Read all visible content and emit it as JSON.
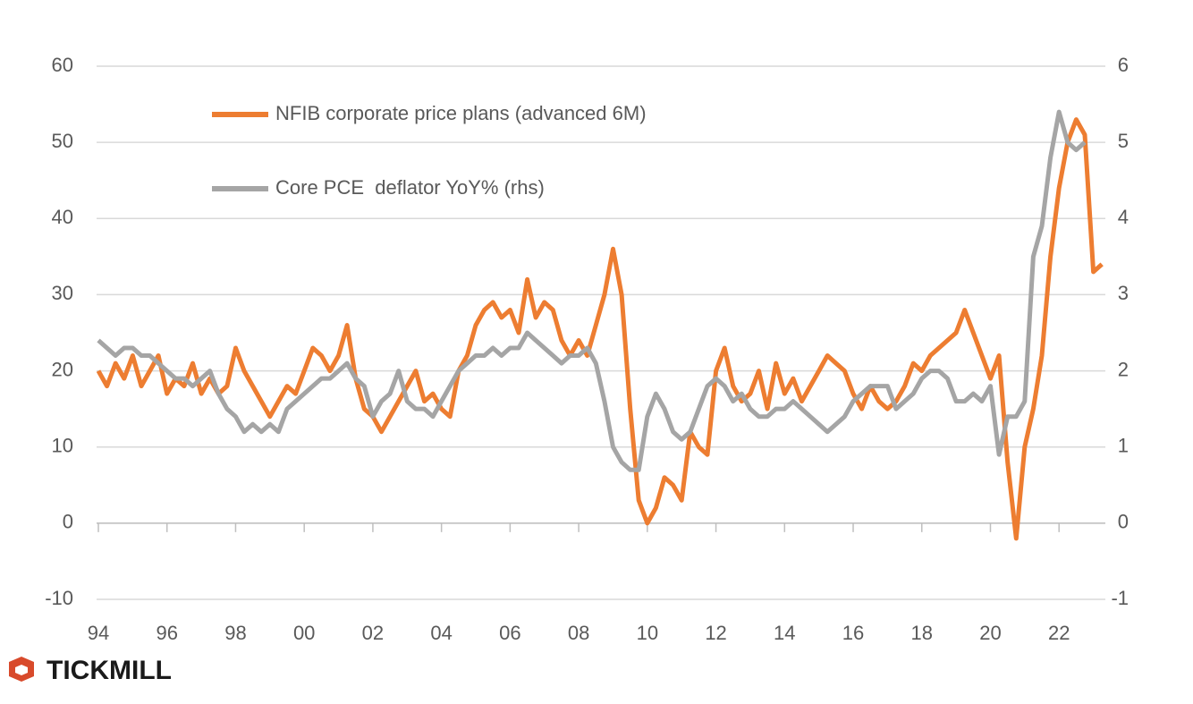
{
  "chart_data": {
    "type": "line",
    "x": [
      1994,
      1994.25,
      1994.5,
      1994.75,
      1995,
      1995.25,
      1995.5,
      1995.75,
      1996,
      1996.25,
      1996.5,
      1996.75,
      1997,
      1997.25,
      1997.5,
      1997.75,
      1998,
      1998.25,
      1998.5,
      1998.75,
      1999,
      1999.25,
      1999.5,
      1999.75,
      2000,
      2000.25,
      2000.5,
      2000.75,
      2001,
      2001.25,
      2001.5,
      2001.75,
      2002,
      2002.25,
      2002.5,
      2002.75,
      2003,
      2003.25,
      2003.5,
      2003.75,
      2004,
      2004.25,
      2004.5,
      2004.75,
      2005,
      2005.25,
      2005.5,
      2005.75,
      2006,
      2006.25,
      2006.5,
      2006.75,
      2007,
      2007.25,
      2007.5,
      2007.75,
      2008,
      2008.25,
      2008.5,
      2008.75,
      2009,
      2009.25,
      2009.5,
      2009.75,
      2010,
      2010.25,
      2010.5,
      2010.75,
      2011,
      2011.25,
      2011.5,
      2011.75,
      2012,
      2012.25,
      2012.5,
      2012.75,
      2013,
      2013.25,
      2013.5,
      2013.75,
      2014,
      2014.25,
      2014.5,
      2014.75,
      2015,
      2015.25,
      2015.5,
      2015.75,
      2016,
      2016.25,
      2016.5,
      2016.75,
      2017,
      2017.25,
      2017.5,
      2017.75,
      2018,
      2018.25,
      2018.5,
      2018.75,
      2019,
      2019.25,
      2019.5,
      2019.75,
      2020,
      2020.25,
      2020.5,
      2020.75,
      2021,
      2021.25,
      2021.5,
      2021.75,
      2022,
      2022.25,
      2022.5,
      2022.75,
      2023,
      2023.25
    ],
    "series": [
      {
        "name": "NFIB corporate price plans (advanced 6M)",
        "color": "#ed7d31",
        "axis": "y",
        "values": [
          20,
          18,
          21,
          19,
          22,
          18,
          20,
          22,
          17,
          19,
          18,
          21,
          17,
          19,
          17,
          18,
          23,
          20,
          18,
          16,
          14,
          16,
          18,
          17,
          20,
          23,
          22,
          20,
          22,
          26,
          19,
          15,
          14,
          12,
          14,
          16,
          18,
          20,
          16,
          17,
          15,
          14,
          20,
          22,
          26,
          28,
          29,
          27,
          28,
          25,
          32,
          27,
          29,
          28,
          24,
          22,
          24,
          22,
          26,
          30,
          36,
          30,
          15,
          3,
          0,
          2,
          6,
          5,
          3,
          12,
          10,
          9,
          20,
          23,
          18,
          16,
          17,
          20,
          15,
          21,
          17,
          19,
          16,
          18,
          20,
          22,
          21,
          20,
          17,
          15,
          18,
          16,
          15,
          16,
          18,
          21,
          20,
          22,
          23,
          24,
          25,
          28,
          25,
          22,
          19,
          22,
          8,
          -2,
          10,
          15,
          22,
          35,
          44,
          50,
          53,
          51,
          33,
          34
        ]
      },
      {
        "name": "Core PCE  deflator YoY% (rhs)",
        "color": "#a5a5a5",
        "axis": "y2",
        "values": [
          2.4,
          2.3,
          2.2,
          2.3,
          2.3,
          2.2,
          2.2,
          2.1,
          2.0,
          1.9,
          1.9,
          1.8,
          1.9,
          2.0,
          1.7,
          1.5,
          1.4,
          1.2,
          1.3,
          1.2,
          1.3,
          1.2,
          1.5,
          1.6,
          1.7,
          1.8,
          1.9,
          1.9,
          2.0,
          2.1,
          1.9,
          1.8,
          1.4,
          1.6,
          1.7,
          2.0,
          1.6,
          1.5,
          1.5,
          1.4,
          1.6,
          1.8,
          2.0,
          2.1,
          2.2,
          2.2,
          2.3,
          2.2,
          2.3,
          2.3,
          2.5,
          2.4,
          2.3,
          2.2,
          2.1,
          2.2,
          2.2,
          2.3,
          2.1,
          1.6,
          1.0,
          0.8,
          0.7,
          0.7,
          1.4,
          1.7,
          1.5,
          1.2,
          1.1,
          1.2,
          1.5,
          1.8,
          1.9,
          1.8,
          1.6,
          1.7,
          1.5,
          1.4,
          1.4,
          1.5,
          1.5,
          1.6,
          1.5,
          1.4,
          1.3,
          1.2,
          1.3,
          1.4,
          1.6,
          1.7,
          1.8,
          1.8,
          1.8,
          1.5,
          1.6,
          1.7,
          1.9,
          2.0,
          2.0,
          1.9,
          1.6,
          1.6,
          1.7,
          1.6,
          1.8,
          0.9,
          1.4,
          1.4,
          1.6,
          3.5,
          3.9,
          4.8,
          5.4,
          5.0,
          4.9,
          5.0,
          null,
          null
        ]
      }
    ],
    "xlim": [
      1994,
      2023.35
    ],
    "xticks": [
      {
        "value": 1994,
        "label": "94"
      },
      {
        "value": 1996,
        "label": "96"
      },
      {
        "value": 1998,
        "label": "98"
      },
      {
        "value": 2000,
        "label": "00"
      },
      {
        "value": 2002,
        "label": "02"
      },
      {
        "value": 2004,
        "label": "04"
      },
      {
        "value": 2006,
        "label": "06"
      },
      {
        "value": 2008,
        "label": "08"
      },
      {
        "value": 2010,
        "label": "10"
      },
      {
        "value": 2012,
        "label": "12"
      },
      {
        "value": 2014,
        "label": "14"
      },
      {
        "value": 2016,
        "label": "16"
      },
      {
        "value": 2018,
        "label": "18"
      },
      {
        "value": 2020,
        "label": "20"
      },
      {
        "value": 2022,
        "label": "22"
      }
    ],
    "ylim": [
      -10,
      60
    ],
    "yticks": [
      -10,
      0,
      10,
      20,
      30,
      40,
      50,
      60
    ],
    "y2lim": [
      -1,
      6
    ],
    "y2ticks": [
      -1,
      0,
      1,
      2,
      3,
      4,
      5,
      6
    ],
    "grid": true
  },
  "logo": "TICKMILL"
}
